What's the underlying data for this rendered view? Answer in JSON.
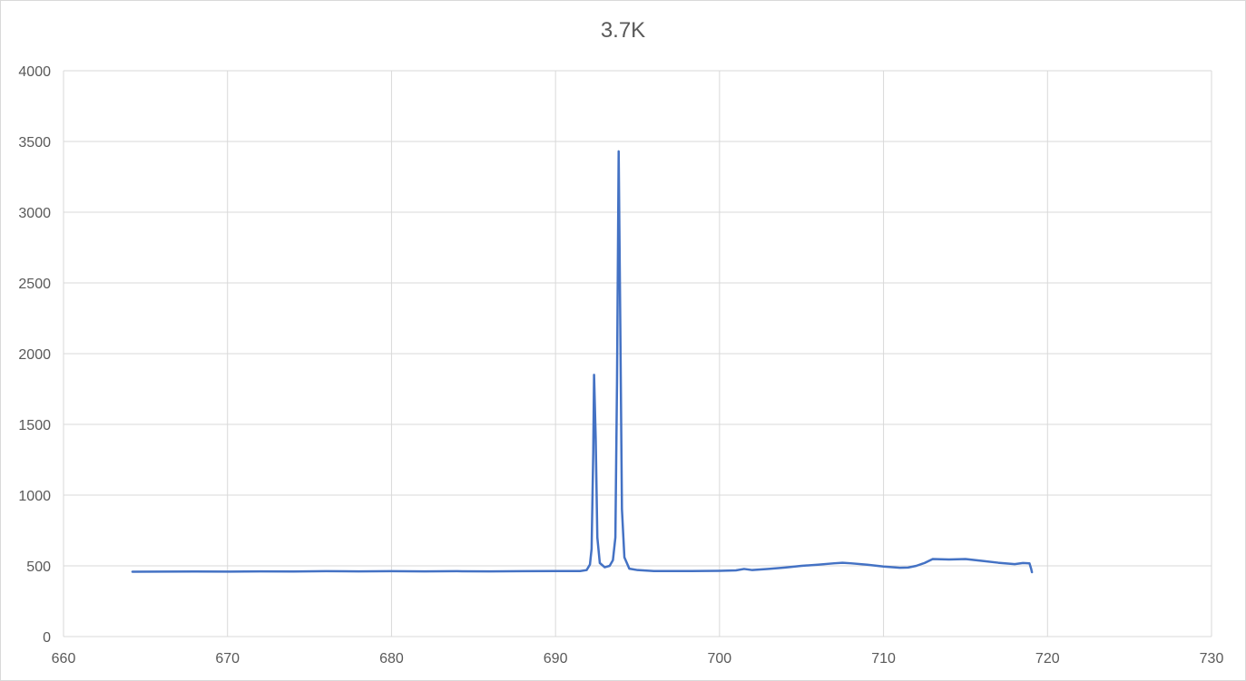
{
  "chart_data": {
    "type": "line",
    "title": "3.7K",
    "xlabel": "",
    "ylabel": "",
    "xlim": [
      660,
      730
    ],
    "ylim": [
      0,
      4000
    ],
    "x_ticks": [
      660,
      670,
      680,
      690,
      700,
      710,
      720,
      730
    ],
    "y_ticks": [
      0,
      500,
      1000,
      1500,
      2000,
      2500,
      3000,
      3500,
      4000
    ],
    "grid": true,
    "legend": "none",
    "series_color": "#4472c4",
    "series": [
      {
        "points": [
          [
            664.2,
            458
          ],
          [
            666,
            459
          ],
          [
            668,
            460
          ],
          [
            670,
            459
          ],
          [
            672,
            461
          ],
          [
            674,
            460
          ],
          [
            676,
            462
          ],
          [
            678,
            461
          ],
          [
            680,
            462
          ],
          [
            682,
            461
          ],
          [
            684,
            462
          ],
          [
            686,
            461
          ],
          [
            688,
            462
          ],
          [
            690,
            463
          ],
          [
            691.5,
            463
          ],
          [
            691.9,
            470
          ],
          [
            692.1,
            510
          ],
          [
            692.2,
            620
          ],
          [
            692.3,
            1300
          ],
          [
            692.35,
            1850
          ],
          [
            692.45,
            1400
          ],
          [
            692.55,
            700
          ],
          [
            692.7,
            520
          ],
          [
            693,
            490
          ],
          [
            693.3,
            500
          ],
          [
            693.5,
            540
          ],
          [
            693.65,
            700
          ],
          [
            693.75,
            1800
          ],
          [
            693.85,
            3430
          ],
          [
            693.95,
            2200
          ],
          [
            694.05,
            900
          ],
          [
            694.2,
            560
          ],
          [
            694.5,
            480
          ],
          [
            695,
            470
          ],
          [
            696,
            463
          ],
          [
            698,
            463
          ],
          [
            700,
            465
          ],
          [
            701,
            468
          ],
          [
            701.5,
            478
          ],
          [
            702,
            470
          ],
          [
            703,
            478
          ],
          [
            704,
            488
          ],
          [
            705,
            500
          ],
          [
            706,
            508
          ],
          [
            707,
            518
          ],
          [
            707.5,
            522
          ],
          [
            708,
            518
          ],
          [
            709,
            508
          ],
          [
            710,
            495
          ],
          [
            711,
            486
          ],
          [
            711.5,
            488
          ],
          [
            712,
            500
          ],
          [
            712.5,
            520
          ],
          [
            713,
            548
          ],
          [
            714,
            545
          ],
          [
            715,
            548
          ],
          [
            716,
            535
          ],
          [
            717,
            522
          ],
          [
            718,
            512
          ],
          [
            718.5,
            520
          ],
          [
            718.9,
            518
          ],
          [
            719,
            480
          ],
          [
            719.05,
            455
          ]
        ]
      }
    ]
  }
}
